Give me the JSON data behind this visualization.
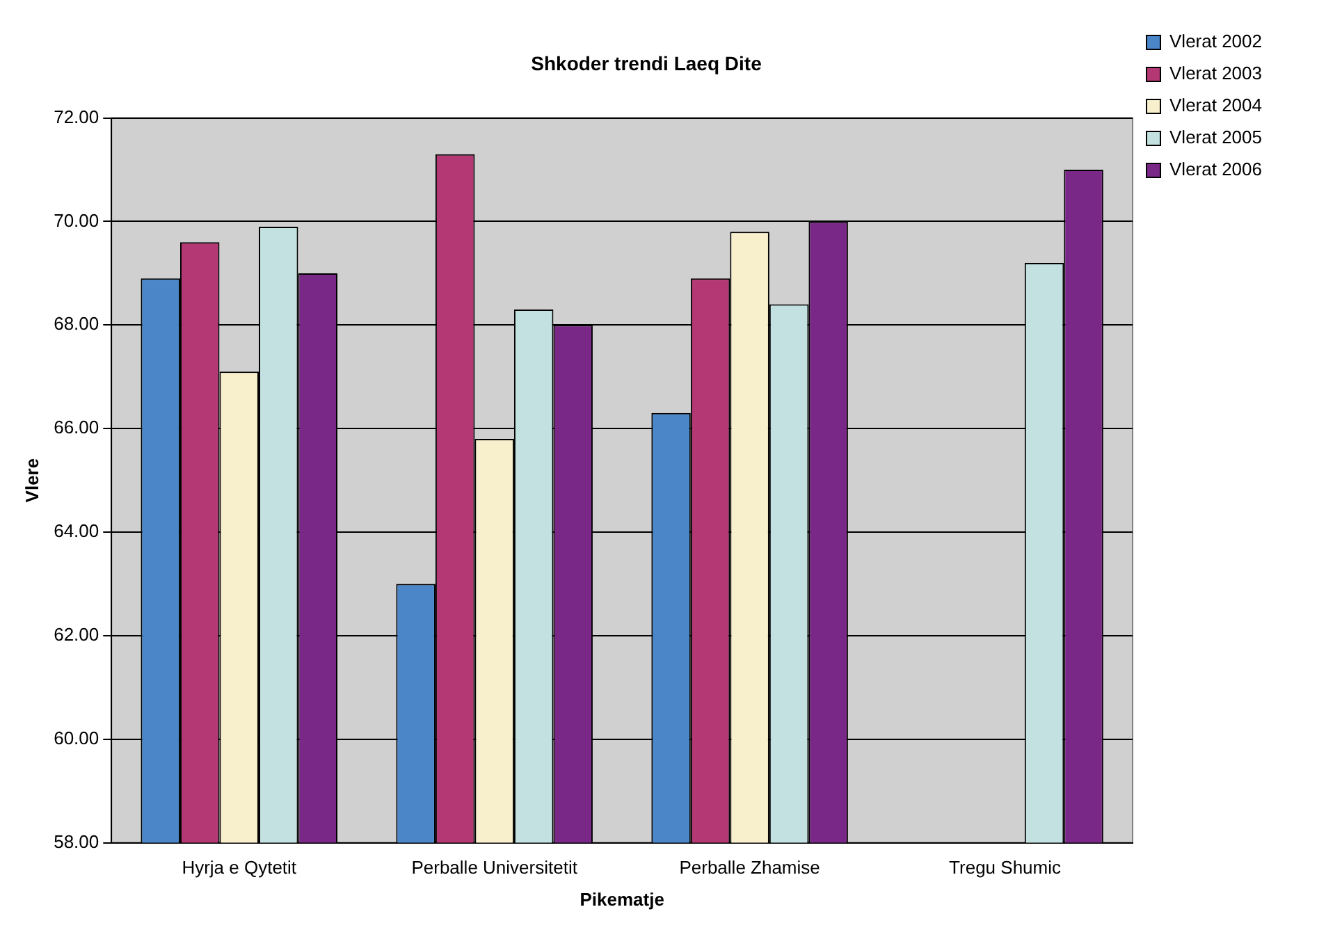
{
  "chart_data": {
    "type": "bar",
    "title": "Shkoder trendi Laeq Dite",
    "xlabel": "Pikematje",
    "ylabel": "Vlere",
    "categories": [
      "Hyrja e Qytetit",
      "Perballe Universitetit",
      "Perballe Zhamise",
      "Tregu Shumic"
    ],
    "series": [
      {
        "name": "Vlerat 2002",
        "color": "#4a86c8",
        "values": [
          68.9,
          63.0,
          66.3,
          null
        ]
      },
      {
        "name": "Vlerat 2003",
        "color": "#b43873",
        "values": [
          69.6,
          71.3,
          68.9,
          null
        ]
      },
      {
        "name": "Vlerat 2004",
        "color": "#f8f0cc",
        "values": [
          67.1,
          65.8,
          69.8,
          null
        ]
      },
      {
        "name": "Vlerat 2005",
        "color": "#c2e1e0",
        "values": [
          69.9,
          68.3,
          68.4,
          69.2
        ]
      },
      {
        "name": "Vlerat 2006",
        "color": "#7a2887",
        "values": [
          69.0,
          68.0,
          70.0,
          71.0
        ]
      }
    ],
    "ylim": [
      58,
      72
    ],
    "yticks": [
      {
        "value": 58,
        "label": "58.00"
      },
      {
        "value": 60,
        "label": "60.00"
      },
      {
        "value": 62,
        "label": "62.00"
      },
      {
        "value": 64,
        "label": "64.00"
      },
      {
        "value": 66,
        "label": "66.00"
      },
      {
        "value": 68,
        "label": "68.00"
      },
      {
        "value": 70,
        "label": "70.00"
      },
      {
        "value": 72,
        "label": "72.00"
      }
    ],
    "grid": "y",
    "legend": "top right"
  }
}
